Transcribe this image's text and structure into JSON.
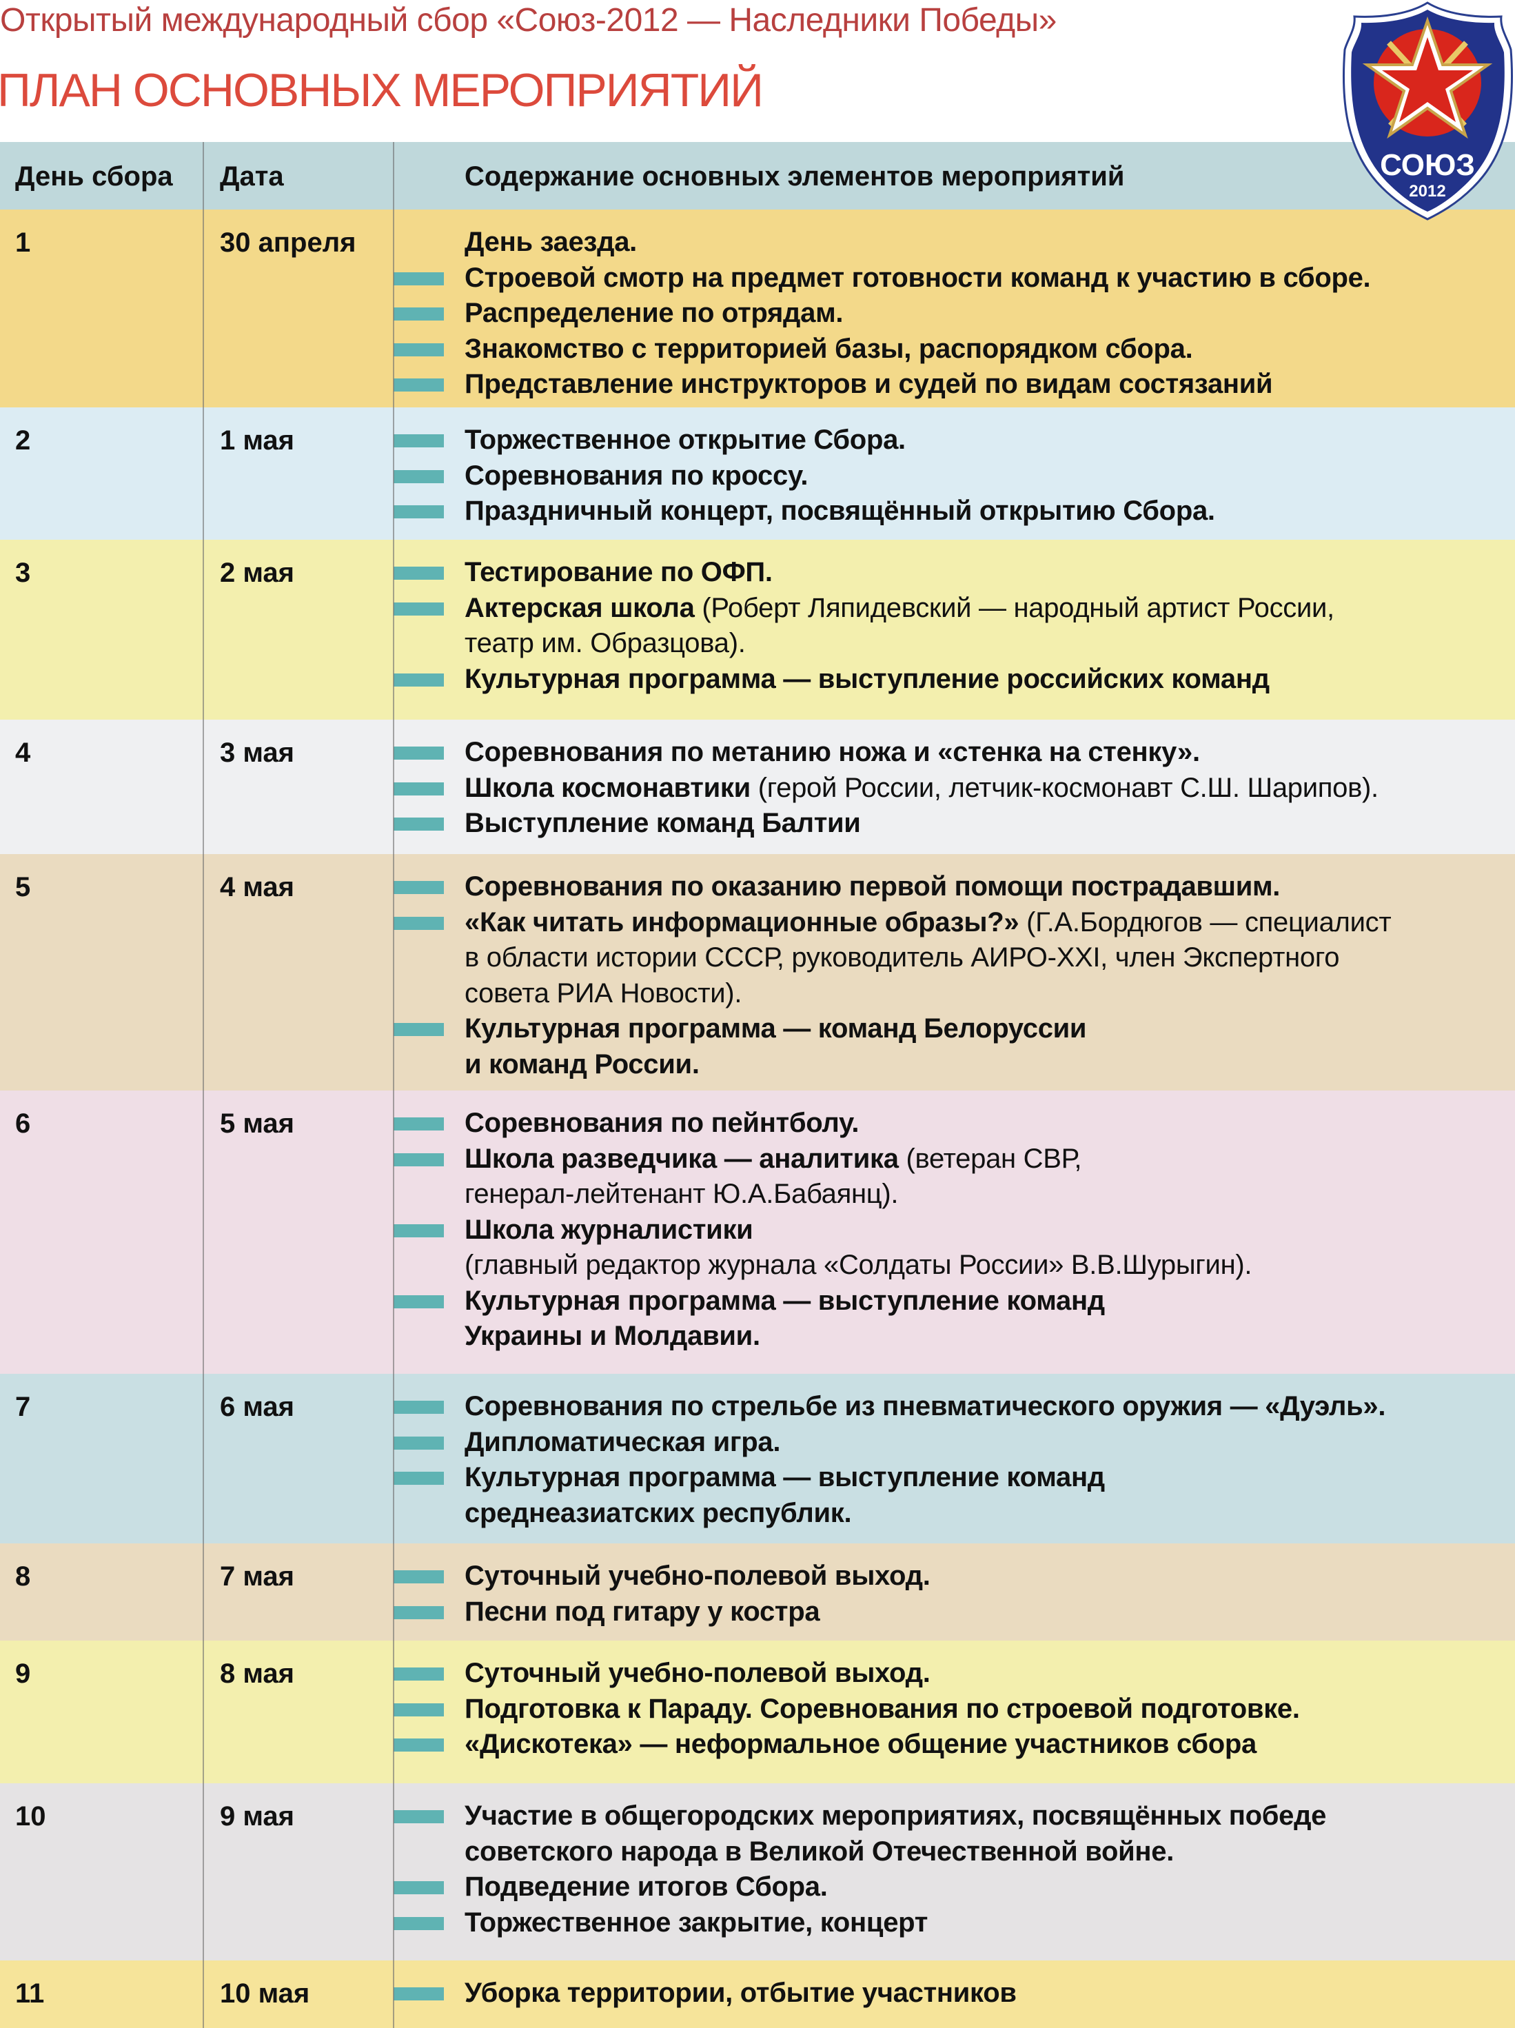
{
  "header": {
    "title": "Открытый международный сбор «Союз-2012 — Наследники Победы»",
    "subtitle": "ПЛАН ОСНОВНЫХ МЕРОПРИЯТИЙ",
    "logo_text": "СОЮЗ",
    "logo_year": "2012"
  },
  "colors": {
    "title": "#b8403f",
    "subtitle": "#dc4a3c",
    "bullet": "#5fb3b3",
    "header_bg": "#bfd8db"
  },
  "table": {
    "columns": [
      "День сбора",
      "Дата",
      "Содержание основных элементов мероприятий"
    ],
    "rows": [
      {
        "day": "1",
        "date": "30 апреля",
        "bg": "#f3d98a",
        "lines": [
          {
            "bullet": false,
            "bold": "День заезда.",
            "normal": ""
          },
          {
            "bullet": true,
            "bold": "Строевой смотр на предмет готовности команд к участию в сборе.",
            "normal": ""
          },
          {
            "bullet": true,
            "bold": "Распределение по отрядам.",
            "normal": ""
          },
          {
            "bullet": true,
            "bold": "Знакомство с территорией базы, распорядком сбора.",
            "normal": ""
          },
          {
            "bullet": true,
            "bold": "Представление инструкторов и судей по видам состязаний",
            "normal": ""
          }
        ]
      },
      {
        "day": "2",
        "date": "1 мая",
        "bg": "#dcecf3",
        "lines": [
          {
            "bullet": true,
            "bold": "Торжественное открытие Сбора.",
            "normal": ""
          },
          {
            "bullet": true,
            "bold": "Соревнования по кроссу.",
            "normal": ""
          },
          {
            "bullet": true,
            "bold": "Праздничный концерт, посвящённый открытию Сбора.",
            "normal": ""
          }
        ]
      },
      {
        "day": "3",
        "date": "2 мая",
        "bg": "#f3efae",
        "lines": [
          {
            "bullet": true,
            "bold": "Тестирование по ОФП.",
            "normal": ""
          },
          {
            "bullet": true,
            "bold": "Актерская школа",
            "normal": " (Роберт Ляпидевский — народный артист России,"
          },
          {
            "bullet": false,
            "bold": "",
            "normal": "театр им. Образцова)."
          },
          {
            "bullet": true,
            "bold": "Культурная программа — выступление российских команд",
            "normal": ""
          }
        ]
      },
      {
        "day": "4",
        "date": "3 мая",
        "bg": "#eff0f2",
        "lines": [
          {
            "bullet": true,
            "bold": "Соревнования по метанию ножа и «стенка на стенку».",
            "normal": ""
          },
          {
            "bullet": true,
            "bold": "Школа космонавтики",
            "normal": " (герой России, летчик-космонавт С.Ш. Шарипов)."
          },
          {
            "bullet": true,
            "bold": "Выступление команд Балтии",
            "normal": ""
          }
        ]
      },
      {
        "day": "5",
        "date": "4 мая",
        "bg": "#eadbc0",
        "lines": [
          {
            "bullet": true,
            "bold": "Соревнования по оказанию первой помощи пострадавшим.",
            "normal": ""
          },
          {
            "bullet": true,
            "bold": "«Как читать информационные образы?»",
            "normal": " (Г.А.Бордюгов — специалист"
          },
          {
            "bullet": false,
            "bold": "",
            "normal": "в области истории СССР, руководитель АИРО-XXI, член Экспертного"
          },
          {
            "bullet": false,
            "bold": "",
            "normal": "совета РИА Новости)."
          },
          {
            "bullet": true,
            "bold": "Культурная программа — команд Белоруссии",
            "normal": ""
          },
          {
            "bullet": false,
            "bold": "и команд России.",
            "normal": ""
          }
        ]
      },
      {
        "day": "6",
        "date": "5 мая",
        "bg": "#efdee6",
        "lines": [
          {
            "bullet": true,
            "bold": "Соревнования по пейнтболу.",
            "normal": ""
          },
          {
            "bullet": true,
            "bold": "Школа разведчика — аналитика",
            "normal": " (ветеран СВР,"
          },
          {
            "bullet": false,
            "bold": "",
            "normal": "генерал-лейтенант Ю.А.Бабаянц)."
          },
          {
            "bullet": true,
            "bold": "Школа журналистики",
            "normal": ""
          },
          {
            "bullet": false,
            "bold": "",
            "normal": "(главный редактор журнала «Солдаты России» В.В.Шурыгин)."
          },
          {
            "bullet": true,
            "bold": "Культурная программа — выступление команд",
            "normal": ""
          },
          {
            "bullet": false,
            "bold": "Украины и Молдавии.",
            "normal": ""
          }
        ]
      },
      {
        "day": "7",
        "date": "6 мая",
        "bg": "#c9dfe3",
        "lines": [
          {
            "bullet": true,
            "bold": "Соревнования по стрельбе из пневматического оружия — «Дуэль».",
            "normal": ""
          },
          {
            "bullet": true,
            "bold": "Дипломатическая игра.",
            "normal": ""
          },
          {
            "bullet": true,
            "bold": "Культурная программа — выступление команд",
            "normal": ""
          },
          {
            "bullet": false,
            "bold": "среднеазиатских республик.",
            "normal": ""
          }
        ]
      },
      {
        "day": "8",
        "date": "7 мая",
        "bg": "#eadbc0",
        "lines": [
          {
            "bullet": true,
            "bold": "Суточный учебно-полевой выход.",
            "normal": ""
          },
          {
            "bullet": true,
            "bold": "Песни под гитару у костра",
            "normal": ""
          }
        ]
      },
      {
        "day": "9",
        "date": "8 мая",
        "bg": "#f3efae",
        "lines": [
          {
            "bullet": true,
            "bold": "Суточный учебно-полевой выход.",
            "normal": ""
          },
          {
            "bullet": true,
            "bold": "Подготовка к Параду. Соревнования по строевой подготовке.",
            "normal": ""
          },
          {
            "bullet": true,
            "bold": "«Дискотека» — неформальное общение участников сбора",
            "normal": ""
          }
        ]
      },
      {
        "day": "10",
        "date": "9 мая",
        "bg": "#e5e3e4",
        "lines": [
          {
            "bullet": true,
            "bold": "Участие в общегородских мероприятиях, посвящённых победе",
            "normal": ""
          },
          {
            "bullet": false,
            "bold": "советского народа в Великой Отечественной войне.",
            "normal": ""
          },
          {
            "bullet": true,
            "bold": "Подведение итогов Сбора.",
            "normal": ""
          },
          {
            "bullet": true,
            "bold": "Торжественное закрытие, концерт",
            "normal": ""
          }
        ]
      },
      {
        "day": "11",
        "date": "10 мая",
        "bg": "#f6e49a",
        "lines": [
          {
            "bullet": true,
            "bold": "Уборка территории, отбытие участников",
            "normal": ""
          }
        ]
      }
    ]
  }
}
